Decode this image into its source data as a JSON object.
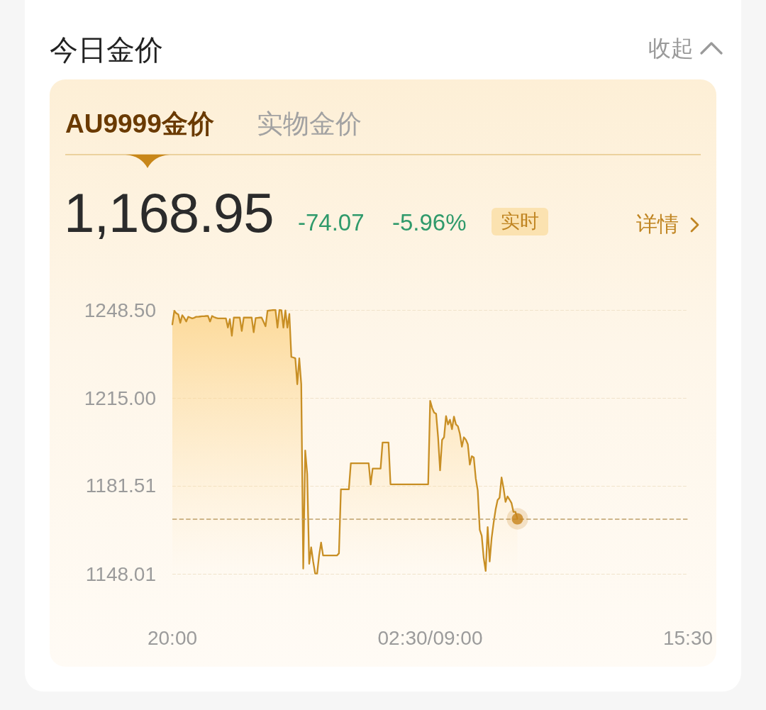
{
  "chart_data": {
    "type": "area",
    "title": "今日金价",
    "subtitle": "AU9999金价",
    "annotations": [
      "收起",
      "实物金价",
      "1,168.95",
      "-74.07",
      "-5.96%",
      "实时",
      "详情"
    ],
    "categories": [
      "20:00",
      null,
      null,
      null,
      null,
      null,
      null,
      null,
      null,
      null,
      null,
      null,
      null,
      null,
      null,
      null,
      null,
      null,
      null,
      null,
      null,
      null,
      null,
      null,
      null,
      null,
      null,
      null,
      null,
      null,
      null,
      null,
      null,
      null,
      null,
      null,
      null,
      null,
      null,
      null,
      null,
      null,
      null,
      null,
      null,
      null,
      null,
      null,
      null,
      null,
      null,
      null,
      null,
      null,
      null,
      null,
      null,
      null,
      null,
      null,
      null,
      null,
      null,
      null,
      null,
      null,
      null,
      null,
      null,
      null,
      null,
      null,
      null,
      null,
      null,
      null,
      null,
      null,
      null,
      null,
      null,
      null,
      null,
      null,
      null,
      null,
      null,
      null,
      null,
      null,
      null,
      null,
      null,
      null,
      null,
      null,
      null,
      null,
      null,
      null,
      null,
      null,
      null,
      null,
      null,
      null,
      null,
      null,
      null,
      null,
      null,
      null,
      null,
      null,
      null,
      null,
      null,
      null,
      null,
      null,
      null,
      null,
      null,
      null,
      null,
      null,
      null,
      null,
      null,
      null,
      "02:30/09:00",
      null,
      null,
      null,
      null,
      null,
      null,
      null,
      null,
      null,
      null,
      null,
      null,
      null,
      null,
      null,
      null,
      null,
      null,
      null,
      null,
      null,
      null,
      null,
      null,
      null,
      null,
      null,
      null,
      null,
      null,
      null,
      null,
      null,
      null,
      null,
      null,
      null,
      null,
      null,
      null,
      null,
      null,
      null,
      null,
      null,
      null,
      null,
      null,
      null,
      null,
      null,
      null,
      null,
      null,
      null,
      null,
      null,
      null,
      null,
      null,
      null,
      null,
      null,
      null,
      null,
      null,
      null,
      null,
      null,
      null,
      null,
      null,
      null,
      null,
      null,
      null,
      null,
      null,
      null,
      null,
      null,
      null,
      null,
      null,
      null,
      null,
      null,
      null,
      null,
      null,
      null,
      null,
      null,
      null,
      null,
      null,
      null,
      null,
      null,
      null,
      null,
      null,
      null,
      null,
      null,
      null,
      null,
      null,
      null,
      null,
      null,
      null,
      null,
      null,
      null,
      null,
      null,
      null,
      null,
      null,
      null,
      null,
      null,
      null,
      null,
      null,
      null,
      null,
      null,
      "15:30"
    ],
    "series": [
      {
        "color": "#c88f25",
        "values": [
          1243.0,
          1248.2,
          1247.2,
          1246.8,
          1243.6,
          1246.5,
          1245.5,
          1244.1,
          1245.9,
          1245.6,
          1245.3,
          1245.5,
          1245.9,
          1245.9,
          1246.0,
          1246.1,
          1246.1,
          1246.2,
          1246.2,
          1244.1,
          1246.2,
          1245.8,
          1245.5,
          1245.3,
          1245.3,
          1245.3,
          1245.3,
          1245.3,
          1241.8,
          1245.0,
          1238.7,
          1245.6,
          1245.6,
          1245.6,
          1245.6,
          1240.5,
          1245.6,
          1245.6,
          1245.6,
          1245.6,
          1245.6,
          1240.0,
          1245.4,
          1245.5,
          1245.6,
          1245.6,
          1244.0,
          1242.3,
          1248.2,
          1248.3,
          1248.4,
          1248.5,
          1248.5,
          1241.8,
          1248.5,
          1248.4,
          1241.8,
          1248.3,
          1241.8,
          1247.0,
          1230.6,
          1230.4,
          1230.1,
          1220.2,
          1230.1,
          1220.2,
          1150.0,
          1195.0,
          1186.0,
          1151.8,
          1158.1,
          1152.7,
          1148.1,
          1148.1,
          1155.0,
          1159.9,
          1155.0,
          1155.0,
          1155.0,
          1155.0,
          1155.0,
          1155.0,
          1155.0,
          1155.0,
          1155.8,
          1180.2,
          1180.2,
          1180.2,
          1180.2,
          1180.2,
          1190.1,
          1190.1,
          1190.1,
          1190.1,
          1190.1,
          1190.1,
          1190.1,
          1190.1,
          1190.1,
          1190.1,
          1182.0,
          1188.1,
          1188.1,
          1188.1,
          1188.1,
          1188.1,
          1198.0,
          1198.0,
          1198.0,
          1198.0,
          1182.1,
          1182.1,
          1182.1,
          1182.1,
          1182.1,
          1182.1,
          1182.1,
          1182.1,
          1182.1,
          1182.1,
          1182.1,
          1182.1,
          1182.1,
          1182.1,
          1182.1,
          1182.1,
          1182.1,
          1182.1,
          1182.1,
          1182.1,
          1213.9,
          1211.2,
          1209.4,
          1209.0,
          1200.0,
          1187.4,
          1199.0,
          1200.0,
          1208.1,
          1204.9,
          1206.7,
          1203.1,
          1207.9,
          1204.9,
          1204.2,
          1201.3,
          1196.4,
          1200.0,
          1199.1,
          1197.3,
          1189.6,
          1192.8,
          1192.3,
          1184.3,
          1179.7,
          1164.8,
          1162.5,
          1154.0,
          1149.1,
          1165.8,
          1152.7,
          1161.7,
          1167.5,
          1172.5,
          1176.1,
          1177.0,
          1184.7,
          1180.6,
          1175.4,
          1177.5,
          1176.3,
          1175.0,
          1171.6,
          1171.6,
          1168.95,
          null,
          null,
          null,
          null,
          null,
          null,
          null,
          null,
          null,
          null,
          null,
          null,
          null,
          null,
          null,
          null,
          null,
          null,
          null,
          null,
          null,
          null,
          null,
          null,
          null,
          null,
          null,
          null,
          null,
          null,
          null,
          null,
          null,
          null,
          null,
          null,
          null,
          null,
          null,
          null,
          null,
          null,
          null,
          null,
          null,
          null,
          null,
          null,
          null,
          null,
          null,
          null,
          null,
          null,
          null,
          null,
          null,
          null,
          null,
          null,
          null,
          null,
          null,
          null,
          null,
          null,
          null,
          null,
          null,
          null,
          null,
          null,
          null,
          null,
          null,
          null,
          null,
          null,
          null,
          null,
          null,
          null,
          null,
          null,
          null,
          null
        ]
      },
      {
        "type": "scatter",
        "color": "#c8841c",
        "values": [
          null,
          null,
          null,
          null,
          null,
          null,
          null,
          null,
          null,
          null,
          null,
          null,
          null,
          null,
          null,
          null,
          null,
          null,
          null,
          null,
          null,
          null,
          null,
          null,
          null,
          null,
          null,
          null,
          null,
          null,
          null,
          null,
          null,
          null,
          null,
          null,
          null,
          null,
          null,
          null,
          null,
          null,
          null,
          null,
          null,
          null,
          null,
          null,
          null,
          null,
          null,
          null,
          null,
          null,
          null,
          null,
          null,
          null,
          null,
          null,
          null,
          null,
          null,
          null,
          null,
          null,
          null,
          null,
          null,
          null,
          null,
          null,
          null,
          null,
          null,
          null,
          null,
          null,
          null,
          null,
          null,
          null,
          null,
          null,
          null,
          null,
          null,
          null,
          null,
          null,
          null,
          null,
          null,
          null,
          null,
          null,
          null,
          null,
          null,
          null,
          null,
          null,
          null,
          null,
          null,
          null,
          null,
          null,
          null,
          null,
          null,
          null,
          null,
          null,
          null,
          null,
          null,
          null,
          null,
          null,
          null,
          null,
          null,
          null,
          null,
          null,
          null,
          null,
          null,
          null,
          null,
          null,
          null,
          null,
          null,
          null,
          null,
          null,
          null,
          null,
          null,
          null,
          null,
          null,
          null,
          null,
          null,
          null,
          null,
          null,
          null,
          null,
          null,
          null,
          null,
          null,
          null,
          null,
          null,
          null,
          null,
          null,
          null,
          null,
          null,
          null,
          null,
          null,
          null,
          null,
          null,
          null,
          null,
          null,
          1168.95,
          null,
          null,
          null,
          null,
          null,
          null,
          null,
          null,
          null,
          null,
          null,
          null,
          null,
          null,
          null,
          null,
          null,
          null,
          null,
          null,
          null,
          null,
          null,
          null,
          null,
          null,
          null,
          null,
          null,
          null,
          null,
          null,
          null,
          null,
          null,
          null,
          null,
          null,
          null,
          null,
          null,
          null,
          null,
          null,
          null,
          null,
          null,
          null,
          null,
          null,
          null,
          null,
          null,
          null,
          null,
          null,
          null,
          null,
          null,
          null,
          null,
          null,
          null,
          null,
          null,
          null,
          null,
          null,
          null,
          null,
          null,
          null,
          null,
          null,
          null,
          null,
          null,
          null,
          null,
          null,
          null,
          null,
          null,
          null,
          null,
          null
        ]
      }
    ],
    "ylim": [
      1148.01,
      1248.5
    ],
    "yticks": [
      {
        "value": 1148.01,
        "label": "1148.01"
      },
      {
        "value": 1181.51,
        "label": "1181.51"
      },
      {
        "value": 1215,
        "label": "1215.00"
      },
      {
        "value": 1248.5,
        "label": "1248.50"
      }
    ],
    "ref_lines": [
      {
        "axis": "y",
        "value": 1168.95,
        "color": "#bfa06a",
        "line_style": "dashed"
      }
    ],
    "grid": "y",
    "line_style": "solid"
  }
}
